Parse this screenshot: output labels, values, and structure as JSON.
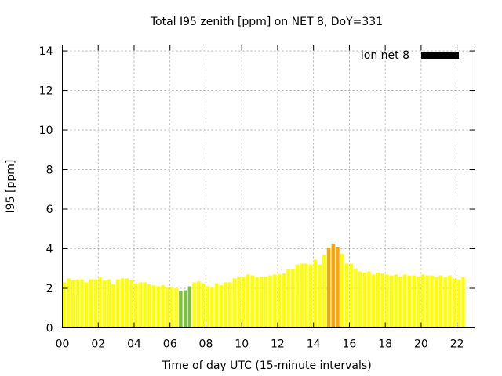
{
  "chart_data": {
    "type": "bar",
    "title": "Total I95 zenith [ppm] on NET 8, DoY=331",
    "xlabel": "Time of day UTC (15-minute intervals)",
    "ylabel": "I95 [ppm]",
    "xlim": [
      0,
      23
    ],
    "ylim": [
      0,
      14.3
    ],
    "x_ticks": [
      "00",
      "02",
      "04",
      "06",
      "08",
      "10",
      "12",
      "14",
      "16",
      "18",
      "20",
      "22"
    ],
    "y_ticks": [
      "0",
      "2",
      "4",
      "6",
      "8",
      "10",
      "12",
      "14"
    ],
    "grid": true,
    "legend_position": "top-right",
    "legend": [
      {
        "label": "ion net 8",
        "color": "#000000"
      }
    ],
    "colors": {
      "low": "#ffff00",
      "dip": "#7fbf3f",
      "high": "#ffa500"
    },
    "interval_hours": 0.25,
    "values": [
      2.3,
      2.5,
      2.4,
      2.45,
      2.45,
      2.3,
      2.45,
      2.45,
      2.55,
      2.4,
      2.45,
      2.2,
      2.45,
      2.5,
      2.5,
      2.4,
      2.25,
      2.3,
      2.3,
      2.2,
      2.15,
      2.1,
      2.15,
      2.05,
      2.05,
      2.0,
      1.85,
      1.9,
      2.1,
      2.3,
      2.35,
      2.25,
      2.1,
      2.05,
      2.25,
      2.15,
      2.3,
      2.3,
      2.5,
      2.55,
      2.6,
      2.7,
      2.65,
      2.55,
      2.6,
      2.6,
      2.65,
      2.7,
      2.7,
      2.75,
      2.95,
      2.95,
      3.2,
      3.25,
      3.25,
      3.2,
      3.45,
      3.2,
      3.7,
      4.05,
      4.25,
      4.1,
      3.75,
      3.25,
      3.25,
      3.0,
      2.85,
      2.8,
      2.85,
      2.7,
      2.8,
      2.75,
      2.7,
      2.65,
      2.7,
      2.6,
      2.7,
      2.65,
      2.65,
      2.6,
      2.7,
      2.65,
      2.65,
      2.55,
      2.65,
      2.55,
      2.65,
      2.5,
      2.45,
      2.55
    ],
    "bar_colors": [
      "low",
      "low",
      "low",
      "low",
      "low",
      "low",
      "low",
      "low",
      "low",
      "low",
      "low",
      "low",
      "low",
      "low",
      "low",
      "low",
      "low",
      "low",
      "low",
      "low",
      "low",
      "low",
      "low",
      "low",
      "low",
      "low",
      "dip",
      "dip",
      "dip",
      "low",
      "low",
      "low",
      "low",
      "low",
      "low",
      "low",
      "low",
      "low",
      "low",
      "low",
      "low",
      "low",
      "low",
      "low",
      "low",
      "low",
      "low",
      "low",
      "low",
      "low",
      "low",
      "low",
      "low",
      "low",
      "low",
      "low",
      "low",
      "low",
      "low",
      "high",
      "high",
      "high",
      "low",
      "low",
      "low",
      "low",
      "low",
      "low",
      "low",
      "low",
      "low",
      "low",
      "low",
      "low",
      "low",
      "low",
      "low",
      "low",
      "low",
      "low",
      "low",
      "low",
      "low",
      "low",
      "low",
      "low",
      "low",
      "low",
      "low",
      "low"
    ]
  }
}
